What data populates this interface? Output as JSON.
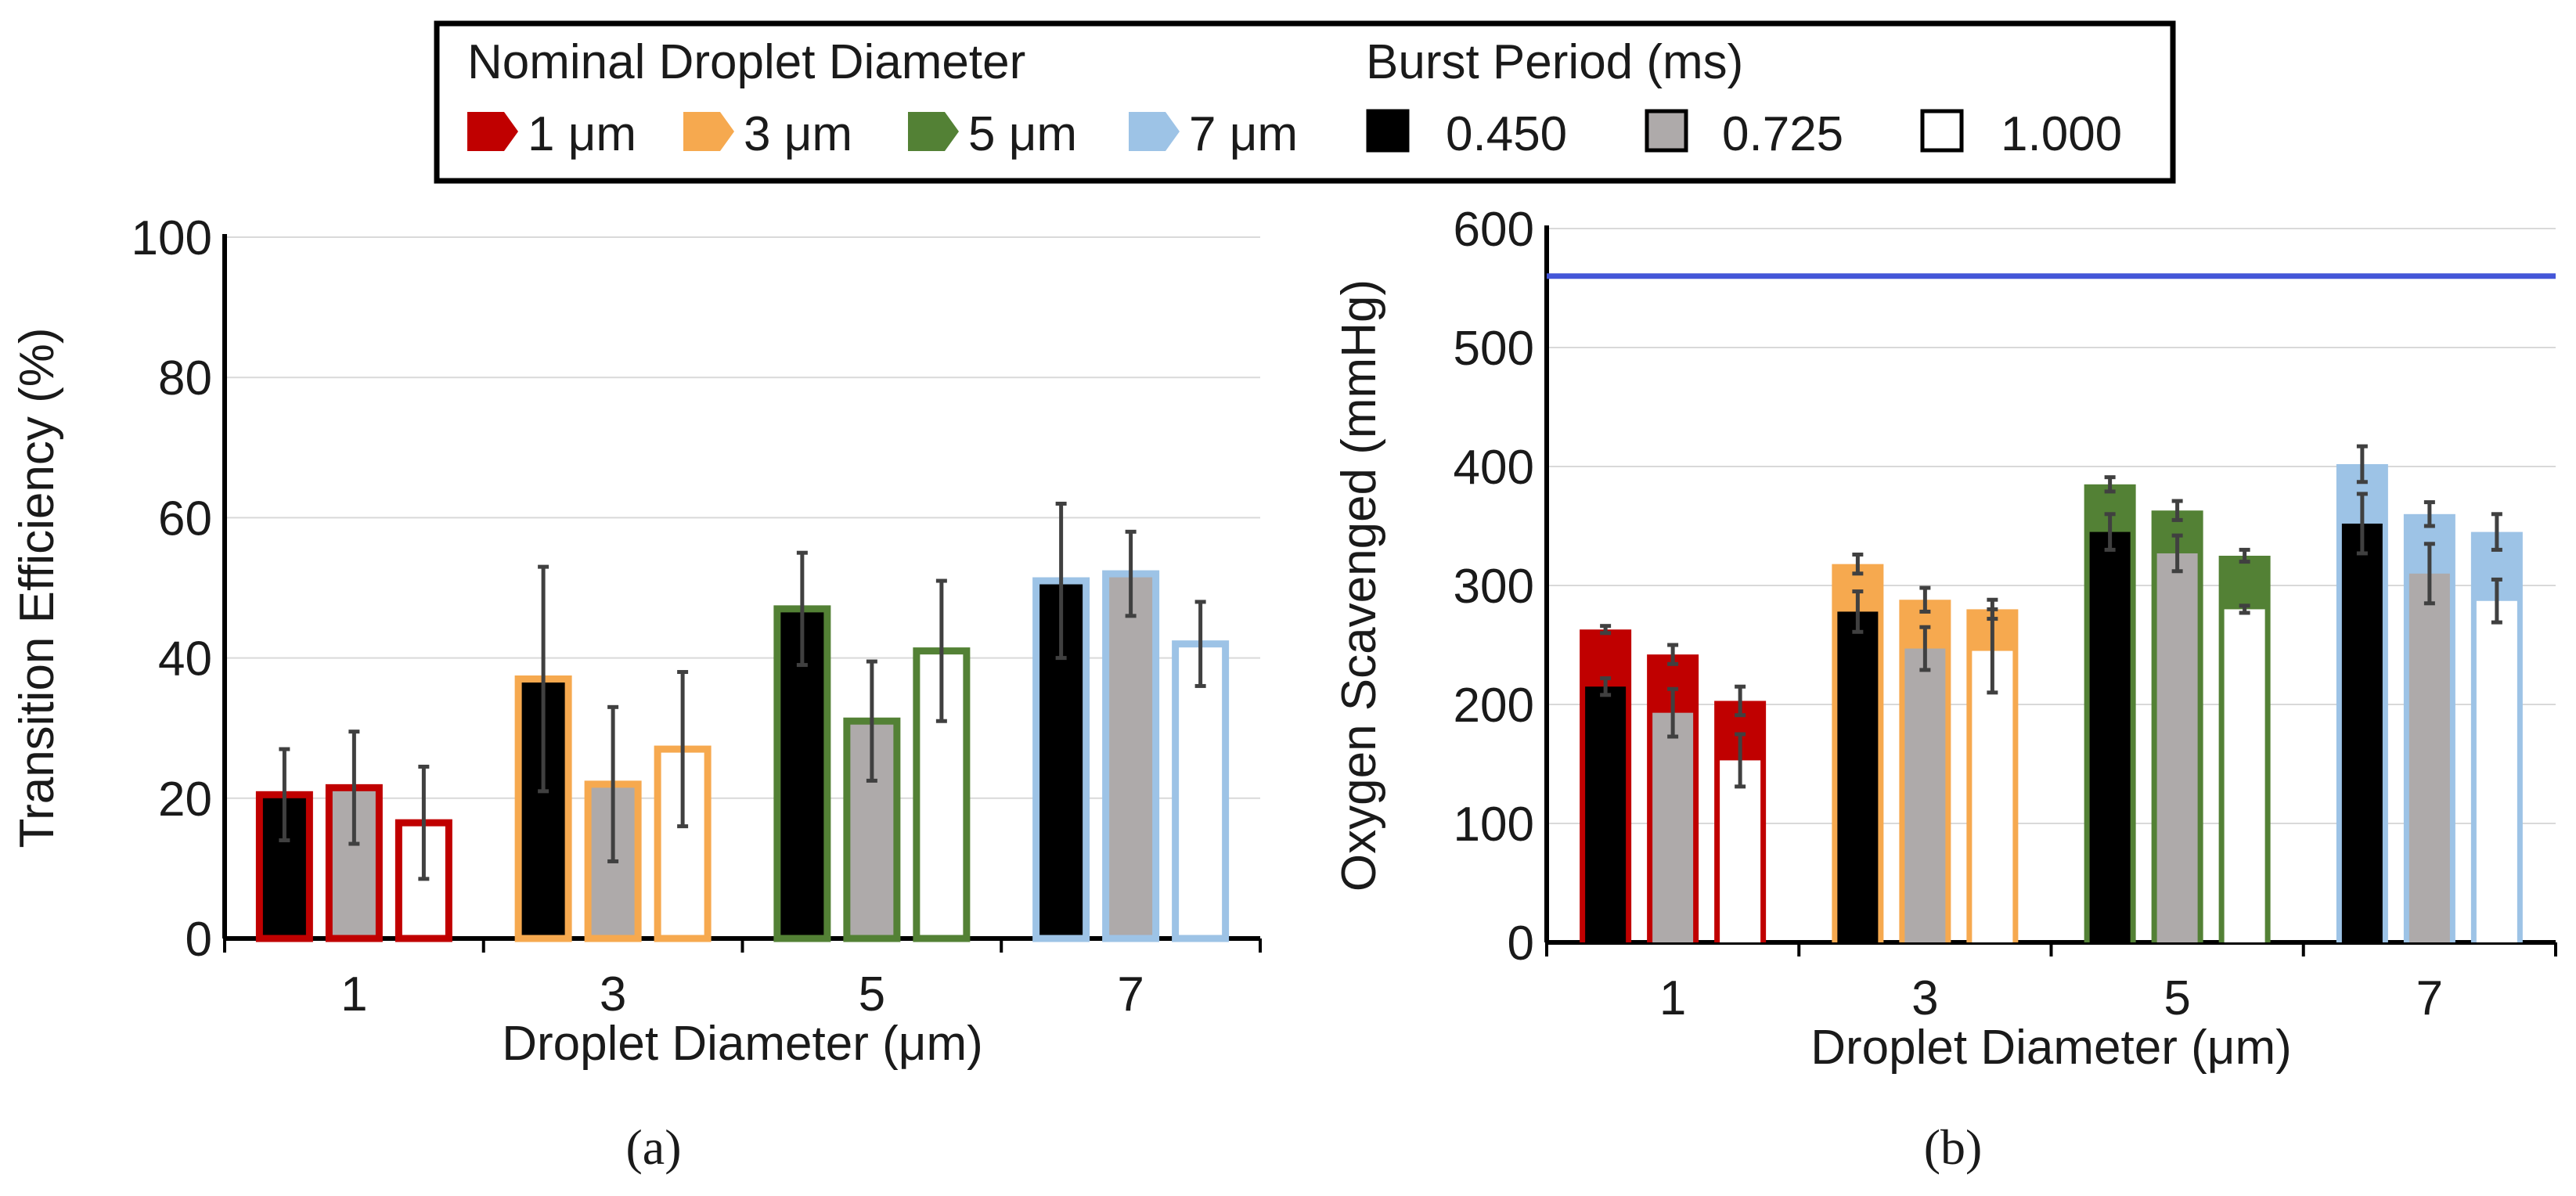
{
  "legend": {
    "droplet_title": "Nominal Droplet Diameter",
    "burst_title": "Burst Period (ms)",
    "droplets": [
      {
        "label": "1 μm",
        "color": "#c00000"
      },
      {
        "label": "3 μm",
        "color": "#f6a94f"
      },
      {
        "label": "5 μm",
        "color": "#538135"
      },
      {
        "label": "7 μm",
        "color": "#9dc3e6"
      }
    ],
    "bursts": [
      {
        "label": "0.450",
        "fill": "#000000"
      },
      {
        "label": "0.725",
        "fill": "#aeaaaa"
      },
      {
        "label": "1.000",
        "fill": "#ffffff"
      }
    ]
  },
  "panel_labels": {
    "a": "(a)",
    "b": "(b)"
  },
  "chart_data": [
    {
      "id": "a",
      "type": "bar",
      "title": "",
      "xlabel": "Droplet Diameter (μm)",
      "ylabel": "Transition Efficiency (%)",
      "ylim": [
        0,
        100
      ],
      "yticks": [
        0,
        20,
        40,
        60,
        80,
        100
      ],
      "grid": true,
      "categories": [
        "1",
        "3",
        "5",
        "7"
      ],
      "series": [
        {
          "name": "0.450",
          "values": [
            20.5,
            37,
            47,
            51
          ],
          "errors": [
            6.5,
            16,
            8,
            11
          ]
        },
        {
          "name": "0.725",
          "values": [
            21.5,
            22,
            31,
            52
          ],
          "errors": [
            8,
            11,
            8.5,
            6
          ]
        },
        {
          "name": "1.000",
          "values": [
            16.5,
            27,
            41,
            42
          ],
          "errors": [
            8,
            11,
            10,
            6
          ]
        }
      ]
    },
    {
      "id": "b",
      "type": "bar",
      "title": "",
      "xlabel": "Droplet Diameter (μm)",
      "ylabel": "Oxygen Scavenged (mmHg)",
      "ylim": [
        0,
        600
      ],
      "yticks": [
        0,
        100,
        200,
        300,
        400,
        500,
        600
      ],
      "grid": true,
      "reference_line": {
        "y": 560,
        "color": "#4456d8"
      },
      "categories": [
        "1",
        "3",
        "5",
        "7"
      ],
      "series": [
        {
          "name": "0.450",
          "outer": [
            263,
            318,
            385,
            402
          ],
          "outer_err": [
            3,
            8,
            6,
            15
          ],
          "inner": [
            215,
            278,
            345,
            352
          ],
          "inner_err": [
            7,
            17,
            15,
            25
          ]
        },
        {
          "name": "0.725",
          "outer": [
            242,
            288,
            363,
            360
          ],
          "outer_err": [
            8,
            10,
            8,
            10
          ],
          "inner": [
            193,
            247,
            327,
            310
          ],
          "inner_err": [
            20,
            18,
            15,
            25
          ]
        },
        {
          "name": "1.000",
          "outer": [
            203,
            280,
            325,
            345
          ],
          "outer_err": [
            12,
            8,
            5,
            15
          ],
          "inner": [
            153,
            245,
            280,
            287
          ],
          "inner_err": [
            22,
            35,
            3,
            18
          ]
        }
      ]
    }
  ]
}
